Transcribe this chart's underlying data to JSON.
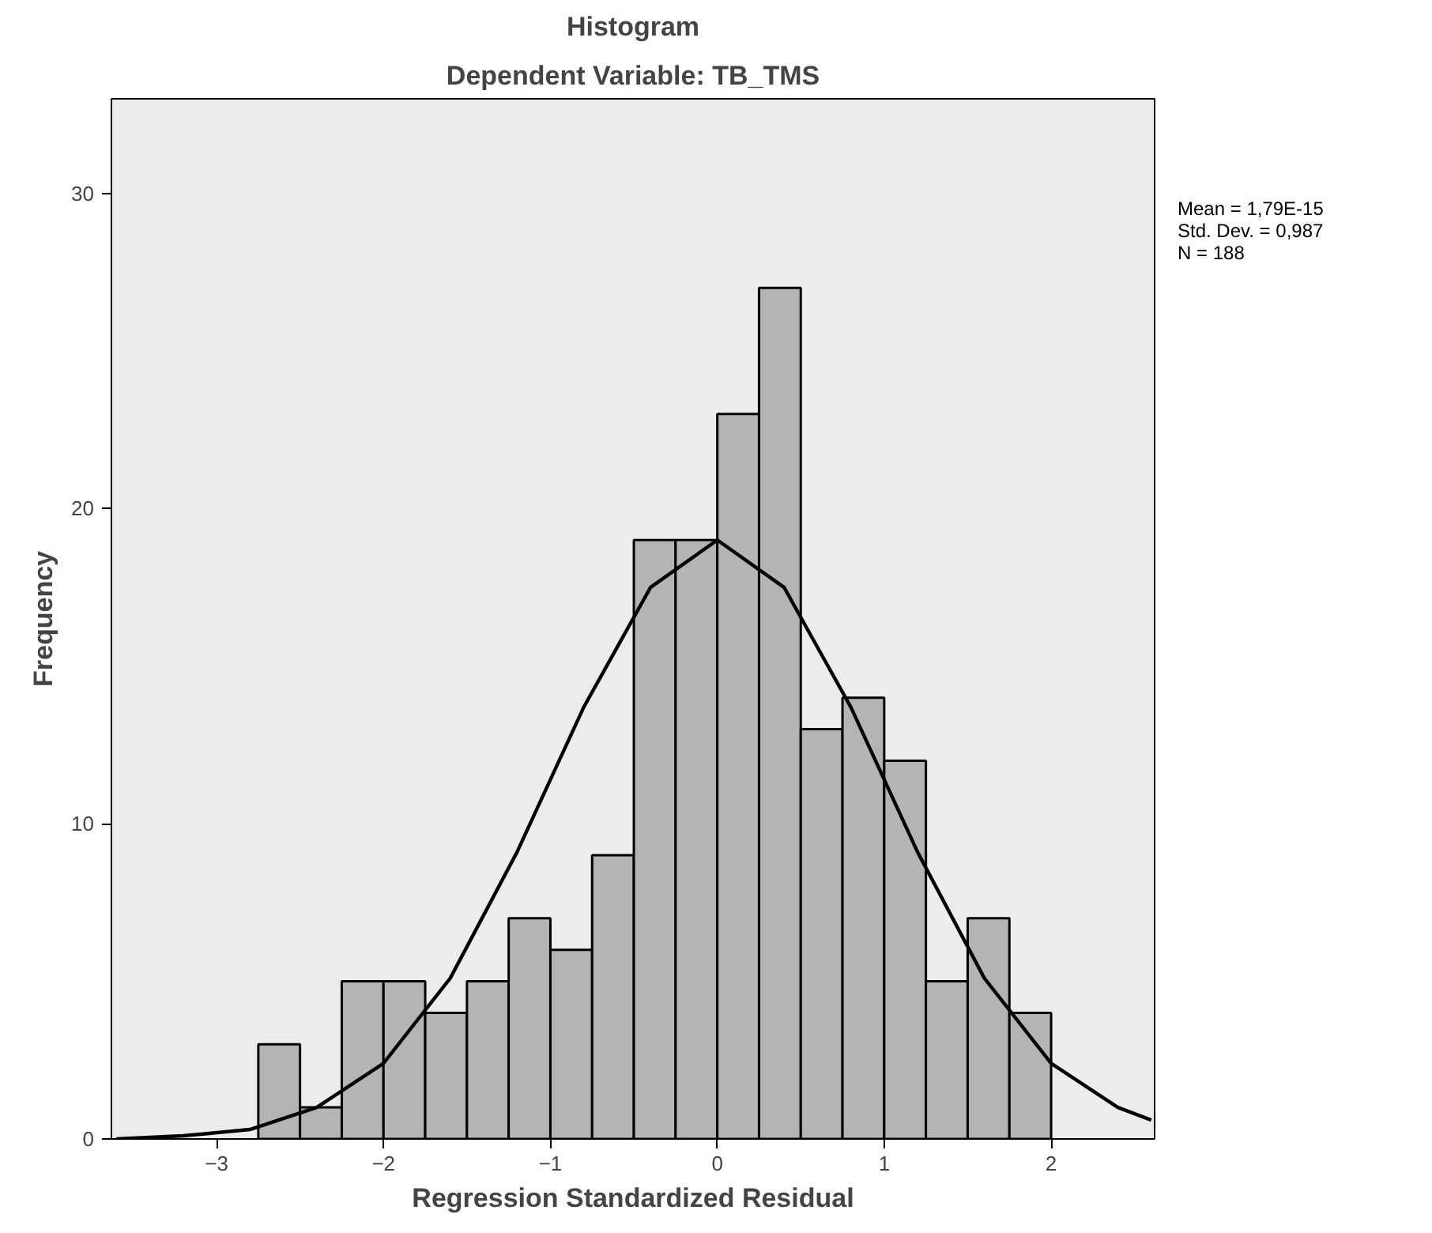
{
  "chart_data": {
    "type": "histogram",
    "title": "Histogram",
    "subtitle": "Dependent Variable: TB_TMS",
    "xlabel": "Regression Standardized Residual",
    "ylabel": "Frequency",
    "bins": [
      -2.75,
      -2.5,
      -2.25,
      -2.0,
      -1.75,
      -1.5,
      -1.25,
      -1.0,
      -0.75,
      -0.5,
      -0.25,
      0.0,
      0.25,
      0.5,
      0.75,
      1.0,
      1.25,
      1.5,
      1.75,
      2.0
    ],
    "values": [
      3,
      1,
      5,
      5,
      4,
      5,
      7,
      6,
      9,
      19,
      19,
      23,
      27,
      13,
      14,
      12,
      5,
      7,
      4
    ],
    "color": "#b4b4b4",
    "series": [
      {
        "type": "line",
        "color": "#000000",
        "x": [
          -3.6,
          -3.2,
          -2.8,
          -2.4,
          -2.0,
          -1.6,
          -1.2,
          -0.8,
          -0.4,
          0.0,
          0.4,
          0.8,
          1.2,
          1.6,
          2.0,
          2.4,
          2.6
        ],
        "values": [
          0.0,
          0.1,
          0.3,
          1.0,
          2.4,
          5.1,
          9.1,
          13.7,
          17.5,
          19.0,
          17.5,
          13.7,
          9.1,
          5.1,
          2.4,
          1.0,
          0.6
        ]
      }
    ],
    "xlim": [
      -3.63,
      2.62
    ],
    "xticks": [
      -3,
      -2,
      -1,
      0,
      1,
      2
    ],
    "ylim": [
      0,
      33
    ],
    "yticks": [
      0,
      10,
      20,
      30
    ],
    "grid": false,
    "annotations": [
      "Mean = 1,79E-15",
      "Std. Dev. = 0,987",
      "N = 188"
    ]
  }
}
